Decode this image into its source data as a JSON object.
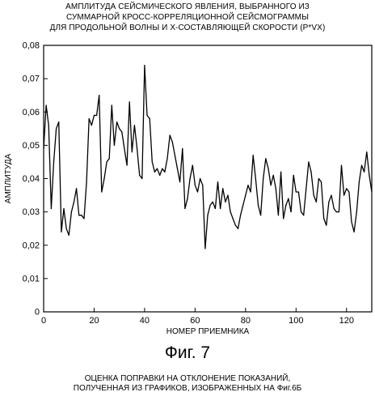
{
  "chart_data": {
    "type": "line",
    "title_lines": [
      "АМПЛИТУДА СЕЙСМИЧЕСКОГО ЯВЛЕНИЯ, ВЫБРАННОГО ИЗ",
      "СУММАРНОЙ КРОСС-КОРРЕЛЯЦИОННОЙ СЕЙСМОГРАММЫ",
      "ДЛЯ ПРОДОЛЬНОЙ ВОЛНЫ И Х-СОСТАВЛЯЮЩЕЙ СКОРОСТИ (P*VX)"
    ],
    "xlabel": "НОМЕР ПРИЕМНИКА",
    "ylabel": "АМПЛИТУДА",
    "xlim": [
      0,
      130
    ],
    "ylim": [
      0,
      0.08
    ],
    "xticks": [
      0,
      20,
      40,
      60,
      80,
      100,
      120
    ],
    "xtick_labels": [
      "0",
      "20",
      "40",
      "60",
      "80",
      "100",
      "120"
    ],
    "yticks": [
      0,
      0.01,
      0.02,
      0.03,
      0.04,
      0.05,
      0.06,
      0.07,
      0.08
    ],
    "ytick_labels": [
      "0",
      "0,01",
      "0,02",
      "0,03",
      "0,04",
      "0,05",
      "0,06",
      "0,07",
      "0,08"
    ],
    "grid": false,
    "line_color": "#000000",
    "x": [
      0,
      1,
      2,
      3,
      4,
      5,
      6,
      7,
      8,
      9,
      10,
      11,
      12,
      13,
      14,
      15,
      16,
      17,
      18,
      19,
      20,
      21,
      22,
      23,
      24,
      25,
      26,
      27,
      28,
      29,
      30,
      31,
      32,
      33,
      34,
      35,
      36,
      37,
      38,
      39,
      40,
      41,
      42,
      43,
      44,
      45,
      46,
      47,
      48,
      49,
      50,
      51,
      52,
      53,
      54,
      55,
      56,
      57,
      58,
      59,
      60,
      61,
      62,
      63,
      64,
      65,
      66,
      67,
      68,
      69,
      70,
      71,
      72,
      73,
      74,
      75,
      76,
      77,
      78,
      79,
      80,
      81,
      82,
      83,
      84,
      85,
      86,
      87,
      88,
      89,
      90,
      91,
      92,
      93,
      94,
      95,
      96,
      97,
      98,
      99,
      100,
      101,
      102,
      103,
      104,
      105,
      106,
      107,
      108,
      109,
      110,
      111,
      112,
      113,
      114,
      115,
      116,
      117,
      118,
      119,
      120,
      121,
      122,
      123,
      124,
      125,
      126,
      127,
      128,
      129,
      130
    ],
    "y": [
      0.049,
      0.062,
      0.056,
      0.031,
      0.045,
      0.055,
      0.057,
      0.024,
      0.031,
      0.025,
      0.023,
      0.03,
      0.033,
      0.037,
      0.029,
      0.029,
      0.028,
      0.039,
      0.058,
      0.056,
      0.059,
      0.059,
      0.065,
      0.036,
      0.04,
      0.045,
      0.046,
      0.062,
      0.05,
      0.057,
      0.055,
      0.054,
      0.049,
      0.044,
      0.063,
      0.048,
      0.056,
      0.049,
      0.041,
      0.04,
      0.074,
      0.059,
      0.058,
      0.045,
      0.042,
      0.043,
      0.041,
      0.043,
      0.042,
      0.046,
      0.053,
      0.051,
      0.047,
      0.043,
      0.039,
      0.049,
      0.031,
      0.034,
      0.04,
      0.044,
      0.038,
      0.036,
      0.04,
      0.038,
      0.019,
      0.029,
      0.032,
      0.033,
      0.031,
      0.039,
      0.031,
      0.037,
      0.033,
      0.035,
      0.03,
      0.028,
      0.026,
      0.025,
      0.029,
      0.032,
      0.035,
      0.038,
      0.036,
      0.047,
      0.04,
      0.032,
      0.029,
      0.04,
      0.046,
      0.043,
      0.038,
      0.041,
      0.037,
      0.029,
      0.042,
      0.028,
      0.032,
      0.034,
      0.03,
      0.041,
      0.036,
      0.036,
      0.03,
      0.029,
      0.037,
      0.045,
      0.042,
      0.035,
      0.033,
      0.04,
      0.039,
      0.028,
      0.026,
      0.033,
      0.035,
      0.031,
      0.03,
      0.03,
      0.044,
      0.035,
      0.037,
      0.036,
      0.027,
      0.024,
      0.03,
      0.039,
      0.044,
      0.042,
      0.048,
      0.041,
      0.036
    ]
  },
  "figure_label": "Фиг. 7",
  "caption_lines": [
    "ОЦЕНКА ПОПРАВКИ НА ОТКЛОНЕНИЕ ПОКАЗАНИЙ,",
    "ПОЛУЧЕННАЯ ИЗ ГРАФИКОВ, ИЗОБРАЖЕННЫХ НА Фиг.6Б"
  ]
}
